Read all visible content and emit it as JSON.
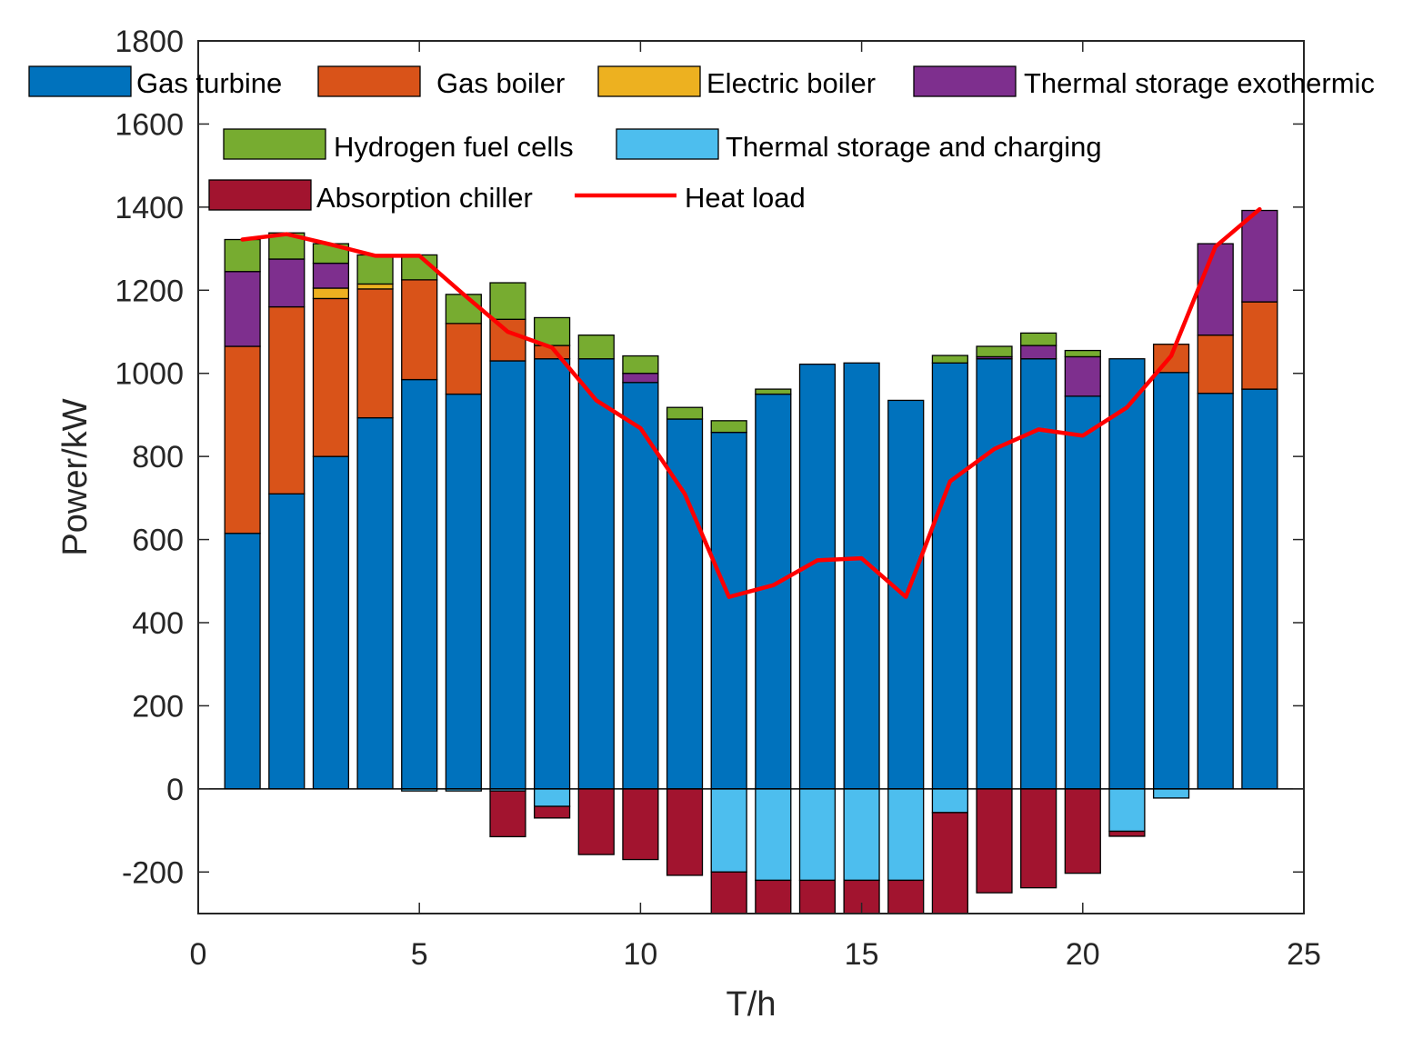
{
  "chart_data": {
    "type": "bar",
    "stacked": true,
    "title": "",
    "xlabel": "T/h",
    "ylabel": "Power/kW",
    "xlim": [
      0,
      25
    ],
    "ylim": [
      -300,
      1800
    ],
    "xticks": [
      0,
      5,
      10,
      15,
      20,
      25
    ],
    "yticks": [
      -200,
      0,
      200,
      400,
      600,
      800,
      1000,
      1200,
      1400,
      1600,
      1800
    ],
    "x": [
      1,
      2,
      3,
      4,
      5,
      6,
      7,
      8,
      9,
      10,
      11,
      12,
      13,
      14,
      15,
      16,
      17,
      18,
      19,
      20,
      21,
      22,
      23,
      24
    ],
    "series": [
      {
        "name": "Gas turbine",
        "color": "#0072BD",
        "values": [
          615,
          710,
          800,
          893,
          985,
          950,
          1030,
          1035,
          1035,
          978,
          890,
          858,
          950,
          1022,
          1025,
          935,
          1025,
          1035,
          1035,
          945,
          1035,
          1002,
          952,
          962
        ]
      },
      {
        "name": "Gas boiler",
        "color": "#D95319",
        "values": [
          450,
          450,
          380,
          310,
          240,
          170,
          100,
          32,
          0,
          0,
          0,
          0,
          0,
          0,
          0,
          0,
          0,
          0,
          0,
          0,
          0,
          68,
          140,
          210
        ]
      },
      {
        "name": "Electric boiler",
        "color": "#EDB120",
        "values": [
          0,
          0,
          25,
          12,
          0,
          0,
          0,
          0,
          0,
          0,
          0,
          0,
          0,
          0,
          0,
          0,
          0,
          0,
          0,
          0,
          0,
          0,
          0,
          0
        ]
      },
      {
        "name": "Thermal storage exothermic",
        "color": "#7E2F8E",
        "values": [
          180,
          115,
          60,
          0,
          0,
          0,
          0,
          0,
          0,
          22,
          0,
          0,
          0,
          0,
          0,
          0,
          0,
          5,
          32,
          95,
          0,
          0,
          220,
          220
        ]
      },
      {
        "name": "Hydrogen fuel cells",
        "color": "#77AC30",
        "values": [
          77,
          63,
          47,
          70,
          60,
          70,
          88,
          67,
          57,
          42,
          28,
          28,
          12,
          0,
          0,
          0,
          18,
          25,
          30,
          15,
          0,
          0,
          0,
          0
        ]
      },
      {
        "name": "Thermal storage and charging",
        "color": "#4DBEEE",
        "values": [
          0,
          0,
          0,
          0,
          -5,
          -5,
          -5,
          -42,
          0,
          0,
          0,
          -200,
          -220,
          -220,
          -220,
          -220,
          -57,
          0,
          0,
          0,
          -102,
          -22,
          0,
          0
        ]
      },
      {
        "name": "Absorption chiller",
        "color": "#A2142F",
        "values": [
          0,
          0,
          0,
          0,
          0,
          0,
          -110,
          -28,
          -158,
          -170,
          -208,
          -150,
          -130,
          -130,
          -130,
          -130,
          -290,
          -250,
          -238,
          -203,
          -12,
          0,
          0,
          0
        ]
      }
    ],
    "line_series": [
      {
        "name": "Heat load",
        "color": "#FF0000",
        "values": [
          1322,
          1335,
          1310,
          1283,
          1283,
          1190,
          1100,
          1062,
          935,
          868,
          710,
          462,
          490,
          550,
          555,
          462,
          740,
          818,
          865,
          850,
          918,
          1042,
          1305,
          1395
        ]
      }
    ],
    "legend": {
      "placement": "top",
      "columns": 4
    },
    "grid": false
  }
}
